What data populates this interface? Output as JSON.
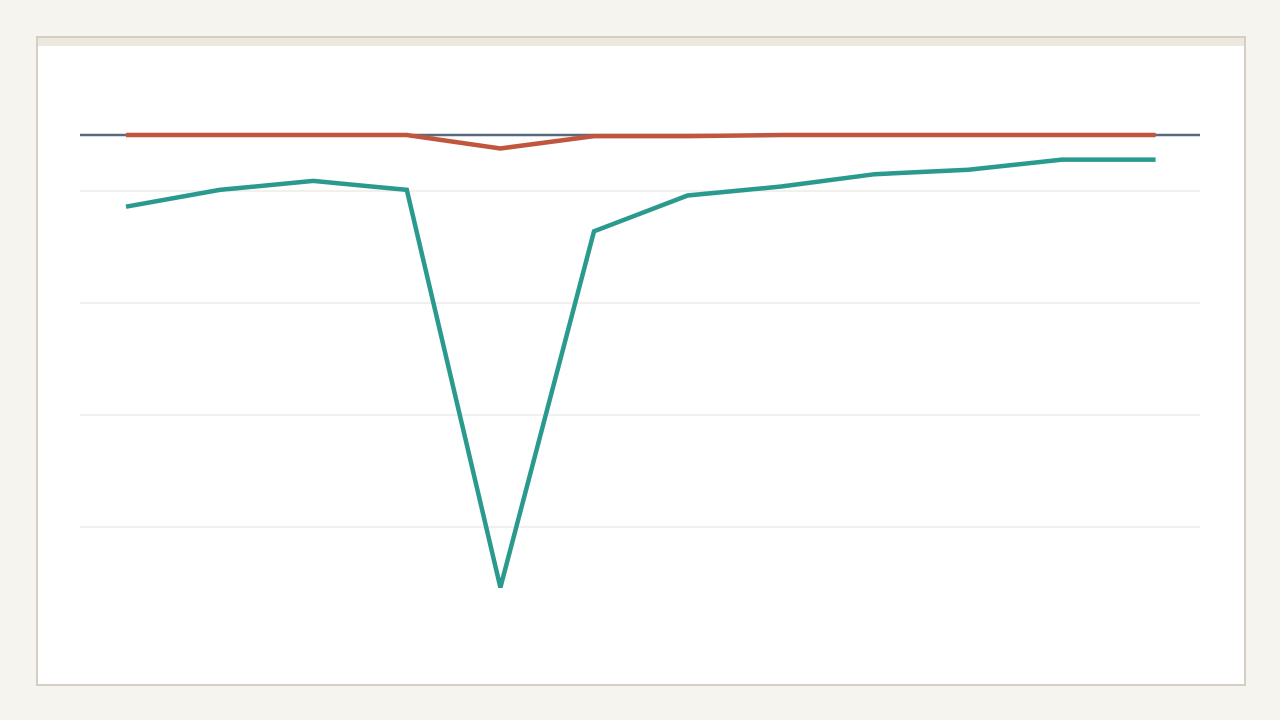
{
  "chart_data": {
    "type": "line",
    "title": "",
    "xlabel": "",
    "ylabel": "",
    "x": [
      1,
      2,
      3,
      4,
      5,
      6,
      7,
      8,
      9,
      10,
      11,
      12
    ],
    "ylim": [
      -45,
      5
    ],
    "gridlines": [
      -5,
      -15,
      -25,
      -35
    ],
    "zero_line": 0,
    "grid": true,
    "legend": "none",
    "series": [
      {
        "color": "#c0563d",
        "values": [
          0,
          0,
          0,
          0,
          -1.2,
          -0.1,
          -0.1,
          0,
          0,
          0,
          0,
          0
        ]
      },
      {
        "color": "#2a9a8e",
        "values": [
          -6.4,
          -4.9,
          -4.1,
          -4.9,
          -40.4,
          -8.6,
          -5.4,
          -4.6,
          -3.5,
          -3.1,
          -2.2,
          -2.2
        ]
      }
    ],
    "colors": {
      "zero_line": "#5a6a7e",
      "grid": "#e3e2d8",
      "background": "#ffffff",
      "page": "#f5f4ef",
      "frame": "#d3cfc4"
    }
  }
}
